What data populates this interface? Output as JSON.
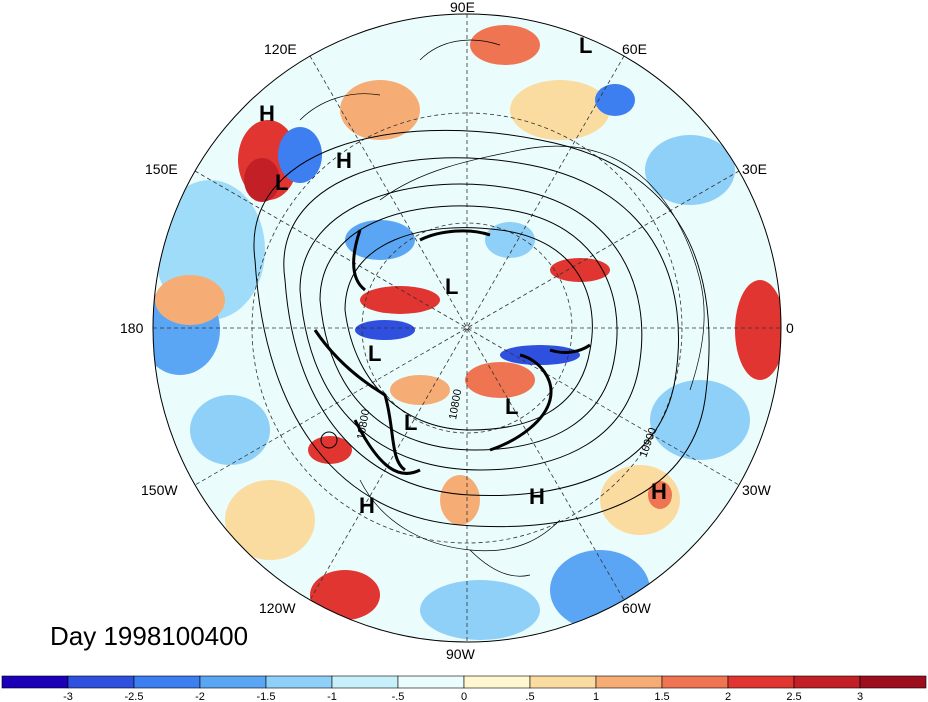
{
  "map": {
    "title": "Day 1998100400",
    "projection": "north-polar-stereographic",
    "longitude_labels": [
      "90E",
      "60E",
      "30E",
      "0",
      "30W",
      "60W",
      "90W",
      "120W",
      "150W",
      "180",
      "150E",
      "120E"
    ],
    "pressure_systems": [
      {
        "type": "H",
        "region": "northeast-asia-coast"
      },
      {
        "type": "H",
        "region": "okhotsk"
      },
      {
        "type": "L",
        "region": "kamchatka"
      },
      {
        "type": "L",
        "region": "siberia-north"
      },
      {
        "type": "L",
        "region": "arctic-ocean"
      },
      {
        "type": "L",
        "region": "alaska"
      },
      {
        "type": "L",
        "region": "canada-central"
      },
      {
        "type": "L",
        "region": "labrador"
      },
      {
        "type": "H",
        "region": "northeast-pacific"
      },
      {
        "type": "H",
        "region": "central-atlantic"
      },
      {
        "type": "H",
        "region": "eastern-atlantic"
      }
    ],
    "contour_labels": [
      "10800",
      "10800",
      "10900"
    ],
    "colorbar": {
      "ticks": [
        "-3",
        "-2.5",
        "-2",
        "-1.5",
        "-1",
        "-.5",
        "0",
        ".5",
        "1",
        "1.5",
        "2",
        "2.5",
        "3"
      ],
      "colors": [
        "#1b00b8",
        "#2f4fde",
        "#3d7ef0",
        "#5aa6f4",
        "#8fd0f8",
        "#c8f0fb",
        "#eafcfb",
        "#fff7cf",
        "#fbdca0",
        "#f6ad75",
        "#ef7552",
        "#e03530",
        "#c21f26",
        "#9c0d1d"
      ]
    }
  }
}
